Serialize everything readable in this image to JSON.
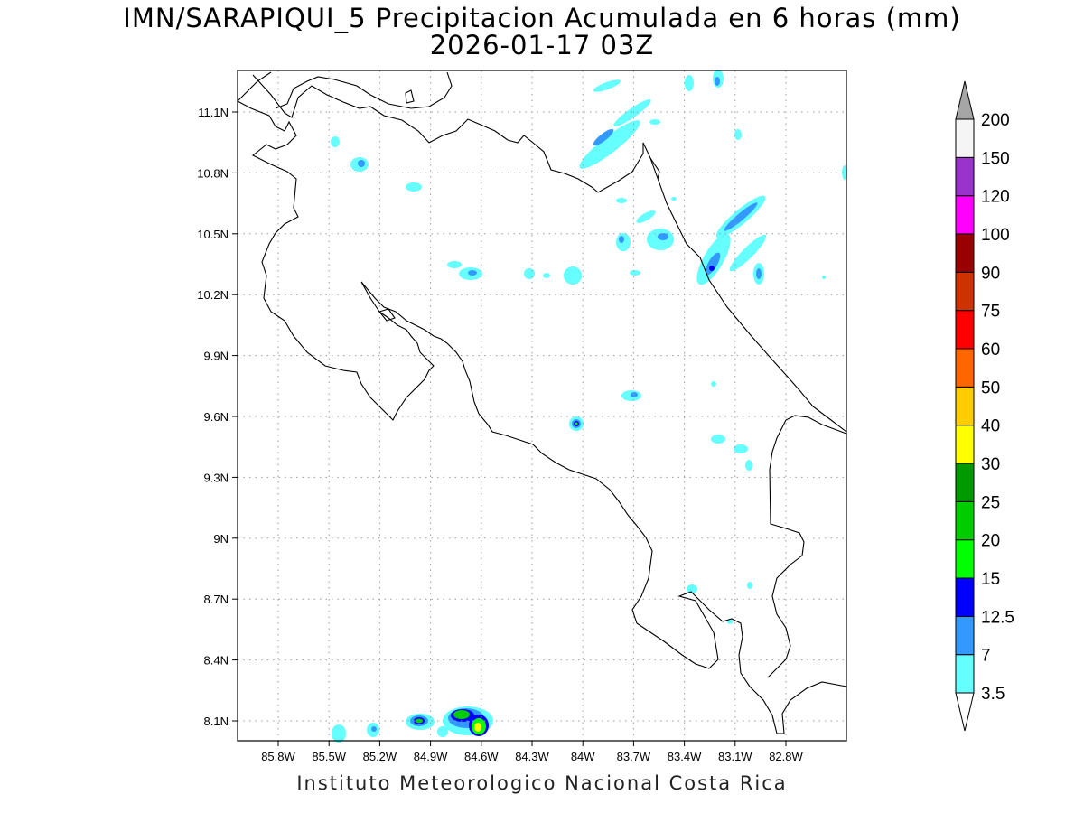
{
  "title": {
    "line1": "IMN/SARAPIQUI_5 Precipitacion Acumulada en 6 horas (mm)",
    "line2": "2026-01-17 03Z"
  },
  "footer": "Instituto Meteorologico Nacional Costa Rica",
  "map": {
    "lon_labels": [
      "85.8W",
      "85.5W",
      "85.2W",
      "84.9W",
      "84.6W",
      "84.3W",
      "84W",
      "83.7W",
      "83.4W",
      "83.1W",
      "82.8W"
    ],
    "lat_labels": [
      "11.1N",
      "10.8N",
      "10.5N",
      "10.2N",
      "9.9N",
      "9.6N",
      "9.3N",
      "9N",
      "8.7N",
      "8.4N",
      "8.1N"
    ],
    "grid": true
  },
  "colorbar": {
    "levels": [
      {
        "label": "3.5",
        "color": "#66ffff"
      },
      {
        "label": "7",
        "color": "#3399ff"
      },
      {
        "label": "12.5",
        "color": "#0000ff"
      },
      {
        "label": "15",
        "color": "#00ff00"
      },
      {
        "label": "20",
        "color": "#00cc00"
      },
      {
        "label": "25",
        "color": "#009900"
      },
      {
        "label": "30",
        "color": "#ffff00"
      },
      {
        "label": "40",
        "color": "#ffcc00"
      },
      {
        "label": "50",
        "color": "#ff6600"
      },
      {
        "label": "60",
        "color": "#ff0000"
      },
      {
        "label": "75",
        "color": "#cc3300"
      },
      {
        "label": "90",
        "color": "#990000"
      },
      {
        "label": "100",
        "color": "#ff00ff"
      },
      {
        "label": "120",
        "color": "#9933cc"
      },
      {
        "label": "150",
        "color": "#f5f5f5"
      },
      {
        "label": "200",
        "color": "#a6a6a6"
      }
    ],
    "under_color": "#ffffff",
    "over_color": "#a6a6a6"
  }
}
